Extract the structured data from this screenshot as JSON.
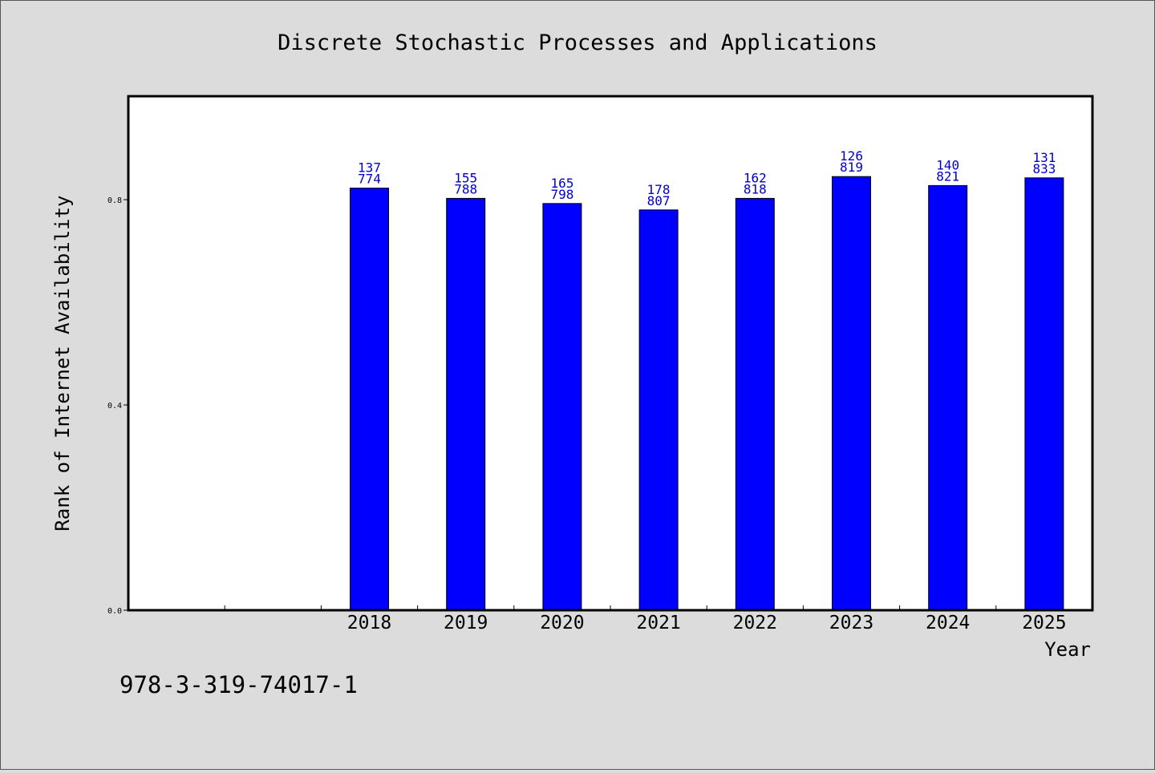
{
  "chart_data": {
    "type": "bar",
    "title": "Discrete Stochastic Processes and Applications",
    "xlabel": "Year",
    "ylabel": "Rank of Internet Availability",
    "categories": [
      "",
      "",
      "2018",
      "2019",
      "2020",
      "2021",
      "2022",
      "2023",
      "2024",
      "2025"
    ],
    "values": [
      null,
      null,
      0.8225,
      0.8025,
      0.7925,
      0.78,
      0.8025,
      0.845,
      0.8275,
      0.8425
    ],
    "data_labels": [
      null,
      null,
      [
        "137",
        "774"
      ],
      [
        "155",
        "788"
      ],
      [
        "165",
        "798"
      ],
      [
        "178",
        "807"
      ],
      [
        "162",
        "818"
      ],
      [
        "126",
        "819"
      ],
      [
        "140",
        "821"
      ],
      [
        "131",
        "833"
      ]
    ],
    "yticks": [
      0.0,
      0.4,
      0.8
    ],
    "ytick_labels": [
      "0.0",
      "0.4",
      "0.8"
    ],
    "ylim": [
      0.0,
      1.0
    ],
    "grid": false,
    "legend": "none",
    "bar_color": "#0000ff",
    "label_color": "#0000cc"
  },
  "footer": {
    "isbn": "978-3-319-74017-1"
  }
}
